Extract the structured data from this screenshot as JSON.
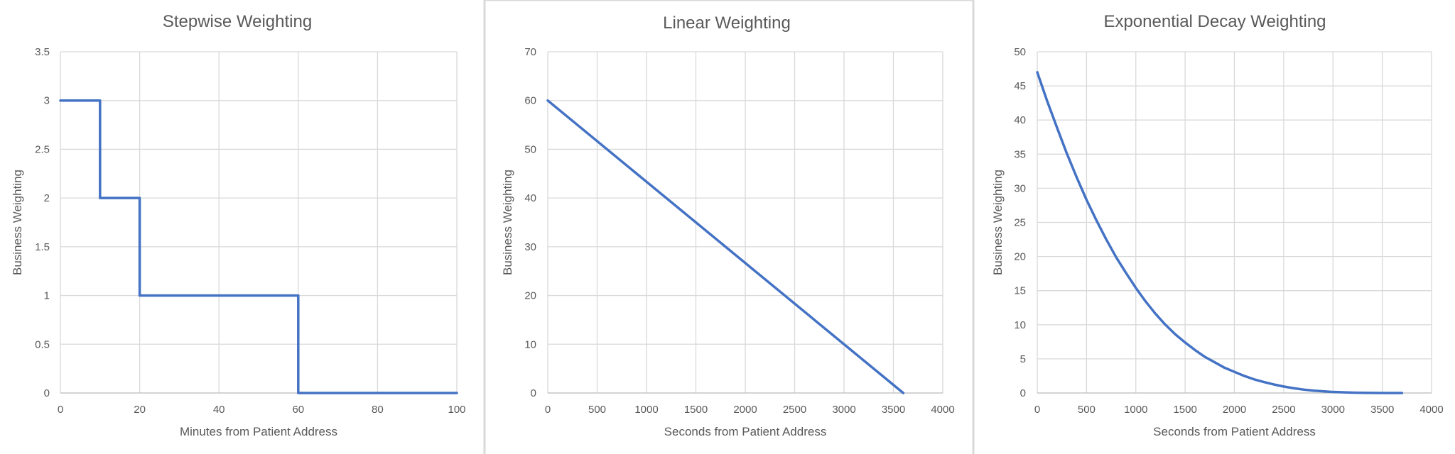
{
  "colors": {
    "series": "#4472c4",
    "grid": "#d9d9d9",
    "text": "#595959"
  },
  "chart_data": [
    {
      "type": "line",
      "title": "Stepwise Weighting",
      "xlabel": "Minutes from Patient Address",
      "ylabel": "Business Weighting",
      "xlim": [
        0,
        100
      ],
      "ylim": [
        0,
        3.5
      ],
      "xticks": [
        0,
        20,
        40,
        60,
        80,
        100
      ],
      "yticks": [
        0,
        0.5,
        1,
        1.5,
        2,
        2.5,
        3,
        3.5
      ],
      "grid": true,
      "series": [
        {
          "x": [
            0,
            10,
            10,
            20,
            20,
            60,
            60,
            100
          ],
          "y": [
            3,
            3,
            2,
            2,
            1,
            1,
            0,
            0
          ]
        }
      ]
    },
    {
      "type": "line",
      "title": "Linear Weighting",
      "xlabel": "Seconds from Patient Address",
      "ylabel": "Business Weighting",
      "xlim": [
        0,
        4000
      ],
      "ylim": [
        0,
        70
      ],
      "xticks": [
        0,
        500,
        1000,
        1500,
        2000,
        2500,
        3000,
        3500,
        4000
      ],
      "yticks": [
        0,
        10,
        20,
        30,
        40,
        50,
        60,
        70
      ],
      "grid": true,
      "series": [
        {
          "x": [
            0,
            3600
          ],
          "y": [
            60,
            0
          ]
        }
      ]
    },
    {
      "type": "line",
      "title": "Exponential Decay Weighting",
      "xlabel": "Seconds from Patient Address",
      "ylabel": "Business Weighting",
      "xlim": [
        0,
        4000
      ],
      "ylim": [
        0,
        50
      ],
      "xticks": [
        0,
        500,
        1000,
        1500,
        2000,
        2500,
        3000,
        3500,
        4000
      ],
      "yticks": [
        0,
        5,
        10,
        15,
        20,
        25,
        30,
        35,
        40,
        45,
        50
      ],
      "grid": true,
      "series": [
        {
          "x": [
            0,
            100,
            200,
            300,
            400,
            500,
            600,
            700,
            800,
            900,
            1000,
            1100,
            1200,
            1300,
            1400,
            1500,
            1600,
            1700,
            1800,
            1900,
            2000,
            2100,
            2200,
            2300,
            2400,
            2500,
            2600,
            2700,
            2800,
            2900,
            3000,
            3100,
            3200,
            3300,
            3400,
            3500,
            3600,
            3700
          ],
          "y": [
            47,
            42.8,
            38.9,
            35.1,
            31.6,
            28.3,
            25.3,
            22.5,
            19.9,
            17.6,
            15.4,
            13.4,
            11.6,
            10,
            8.6,
            7.4,
            6.3,
            5.3,
            4.5,
            3.7,
            3.1,
            2.5,
            2,
            1.6,
            1.25,
            0.95,
            0.7,
            0.5,
            0.35,
            0.25,
            0.15,
            0.1,
            0.05,
            0.02,
            0.01,
            0.005,
            0,
            0
          ]
        }
      ]
    }
  ]
}
